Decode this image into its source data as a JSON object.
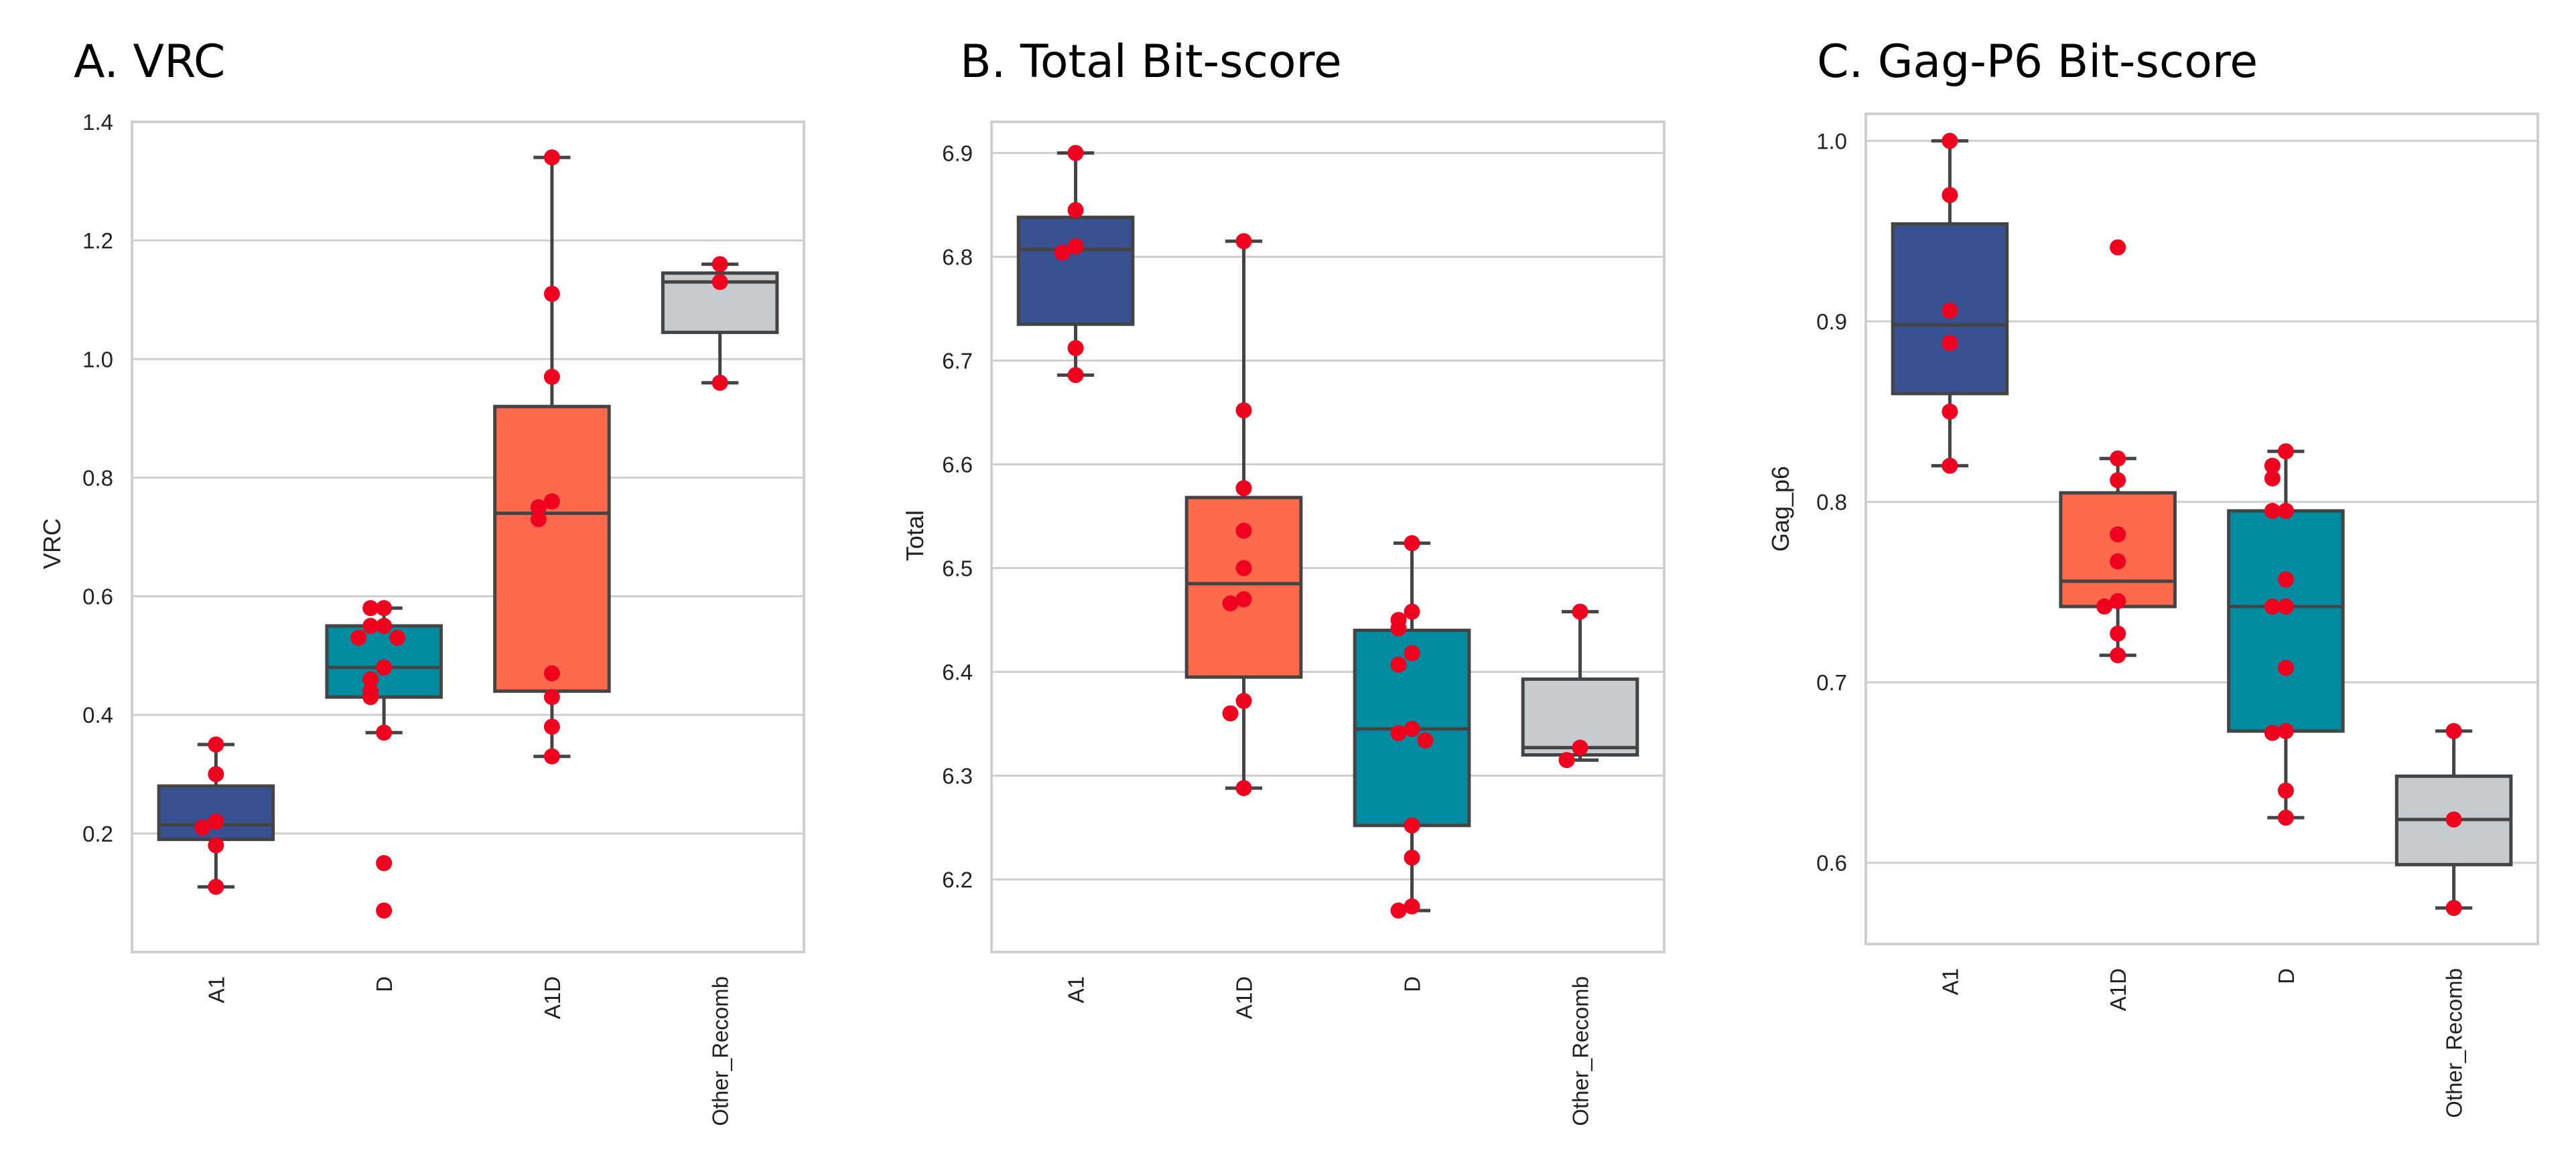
{
  "chart_data": [
    {
      "type": "box",
      "title": "A. VRC",
      "xlabel": "",
      "ylabel": "VRC",
      "ylim": [
        0.0,
        1.4
      ],
      "yticks": [
        0.2,
        0.4,
        0.6,
        0.8,
        1.0,
        1.2,
        1.4
      ],
      "ytick_labels": [
        "0.2",
        "0.4",
        "0.6",
        "0.8",
        "1.0",
        "1.2",
        "1.4"
      ],
      "grid": true,
      "categories": [
        "A1",
        "D",
        "A1D",
        "Other_Recomb"
      ],
      "colors": [
        "#3a5191",
        "#008ba0",
        "#ff6a4d",
        "#c5cbce"
      ],
      "boxes": [
        {
          "q1": 0.19,
          "median": 0.215,
          "q3": 0.28,
          "whisker_low": 0.11,
          "whisker_high": 0.35
        },
        {
          "q1": 0.43,
          "median": 0.48,
          "q3": 0.55,
          "whisker_low": 0.37,
          "whisker_high": 0.58
        },
        {
          "q1": 0.44,
          "median": 0.74,
          "q3": 0.92,
          "whisker_low": 0.33,
          "whisker_high": 1.34
        },
        {
          "q1": 1.045,
          "median": 1.13,
          "q3": 1.145,
          "whisker_low": 0.96,
          "whisker_high": 1.16
        }
      ],
      "points": [
        [
          0.35,
          0.3,
          0.22,
          0.21,
          0.18,
          0.11
        ],
        [
          0.58,
          0.58,
          0.55,
          0.55,
          0.53,
          0.53,
          0.48,
          0.46,
          0.44,
          0.43,
          0.37,
          0.15,
          0.07
        ],
        [
          1.34,
          1.11,
          0.97,
          0.76,
          0.75,
          0.73,
          0.47,
          0.43,
          0.38,
          0.33
        ],
        [
          1.16,
          1.13,
          0.96
        ]
      ]
    },
    {
      "type": "box",
      "title": "B. Total Bit-score",
      "xlabel": "",
      "ylabel": "Total",
      "ylim": [
        6.13,
        6.93
      ],
      "yticks": [
        6.2,
        6.3,
        6.4,
        6.5,
        6.6,
        6.7,
        6.8,
        6.9
      ],
      "ytick_labels": [
        "6.2",
        "6.3",
        "6.4",
        "6.5",
        "6.6",
        "6.7",
        "6.8",
        "6.9"
      ],
      "grid": true,
      "categories": [
        "A1",
        "A1D",
        "D",
        "Other_Recomb"
      ],
      "colors": [
        "#3a5191",
        "#ff6a4d",
        "#008ba0",
        "#c5cbce"
      ],
      "boxes": [
        {
          "q1": 6.735,
          "median": 6.807,
          "q3": 6.838,
          "whisker_low": 6.686,
          "whisker_high": 6.9
        },
        {
          "q1": 6.395,
          "median": 6.485,
          "q3": 6.568,
          "whisker_low": 6.288,
          "whisker_high": 6.815
        },
        {
          "q1": 6.252,
          "median": 6.345,
          "q3": 6.44,
          "whisker_low": 6.17,
          "whisker_high": 6.524
        },
        {
          "q1": 6.32,
          "median": 6.327,
          "q3": 6.393,
          "whisker_low": 6.315,
          "whisker_high": 6.458
        }
      ],
      "points": [
        [
          6.9,
          6.845,
          6.81,
          6.804,
          6.712,
          6.686
        ],
        [
          6.815,
          6.652,
          6.577,
          6.536,
          6.5,
          6.47,
          6.466,
          6.372,
          6.36,
          6.288
        ],
        [
          6.524,
          6.458,
          6.45,
          6.442,
          6.418,
          6.407,
          6.345,
          6.341,
          6.334,
          6.252,
          6.221,
          6.174,
          6.17
        ],
        [
          6.458,
          6.327,
          6.315
        ]
      ]
    },
    {
      "type": "box",
      "title": "C. Gag-P6 Bit-score",
      "xlabel": "",
      "ylabel": "Gag_p6",
      "ylim": [
        0.555,
        1.015
      ],
      "yticks": [
        0.6,
        0.7,
        0.8,
        0.9,
        1.0
      ],
      "ytick_labels": [
        "0.6",
        "0.7",
        "0.8",
        "0.9",
        "1.0"
      ],
      "grid": true,
      "categories": [
        "A1",
        "A1D",
        "D",
        "Other_Recomb"
      ],
      "colors": [
        "#3a5191",
        "#ff6a4d",
        "#008ba0",
        "#c5cbce"
      ],
      "boxes": [
        {
          "q1": 0.86,
          "median": 0.898,
          "q3": 0.954,
          "whisker_low": 0.82,
          "whisker_high": 1.0
        },
        {
          "q1": 0.742,
          "median": 0.756,
          "q3": 0.805,
          "whisker_low": 0.715,
          "whisker_high": 0.824
        },
        {
          "q1": 0.673,
          "median": 0.742,
          "q3": 0.795,
          "whisker_low": 0.625,
          "whisker_high": 0.828
        },
        {
          "q1": 0.599,
          "median": 0.624,
          "q3": 0.648,
          "whisker_low": 0.575,
          "whisker_high": 0.673
        }
      ],
      "points": [
        [
          1.0,
          0.97,
          0.906,
          0.888,
          0.85,
          0.82
        ],
        [
          0.941,
          0.824,
          0.812,
          0.782,
          0.767,
          0.745,
          0.742,
          0.727,
          0.715
        ],
        [
          0.828,
          0.82,
          0.813,
          0.795,
          0.795,
          0.757,
          0.742,
          0.742,
          0.708,
          0.673,
          0.672,
          0.64,
          0.625
        ],
        [
          0.673,
          0.624,
          0.575
        ]
      ]
    }
  ]
}
